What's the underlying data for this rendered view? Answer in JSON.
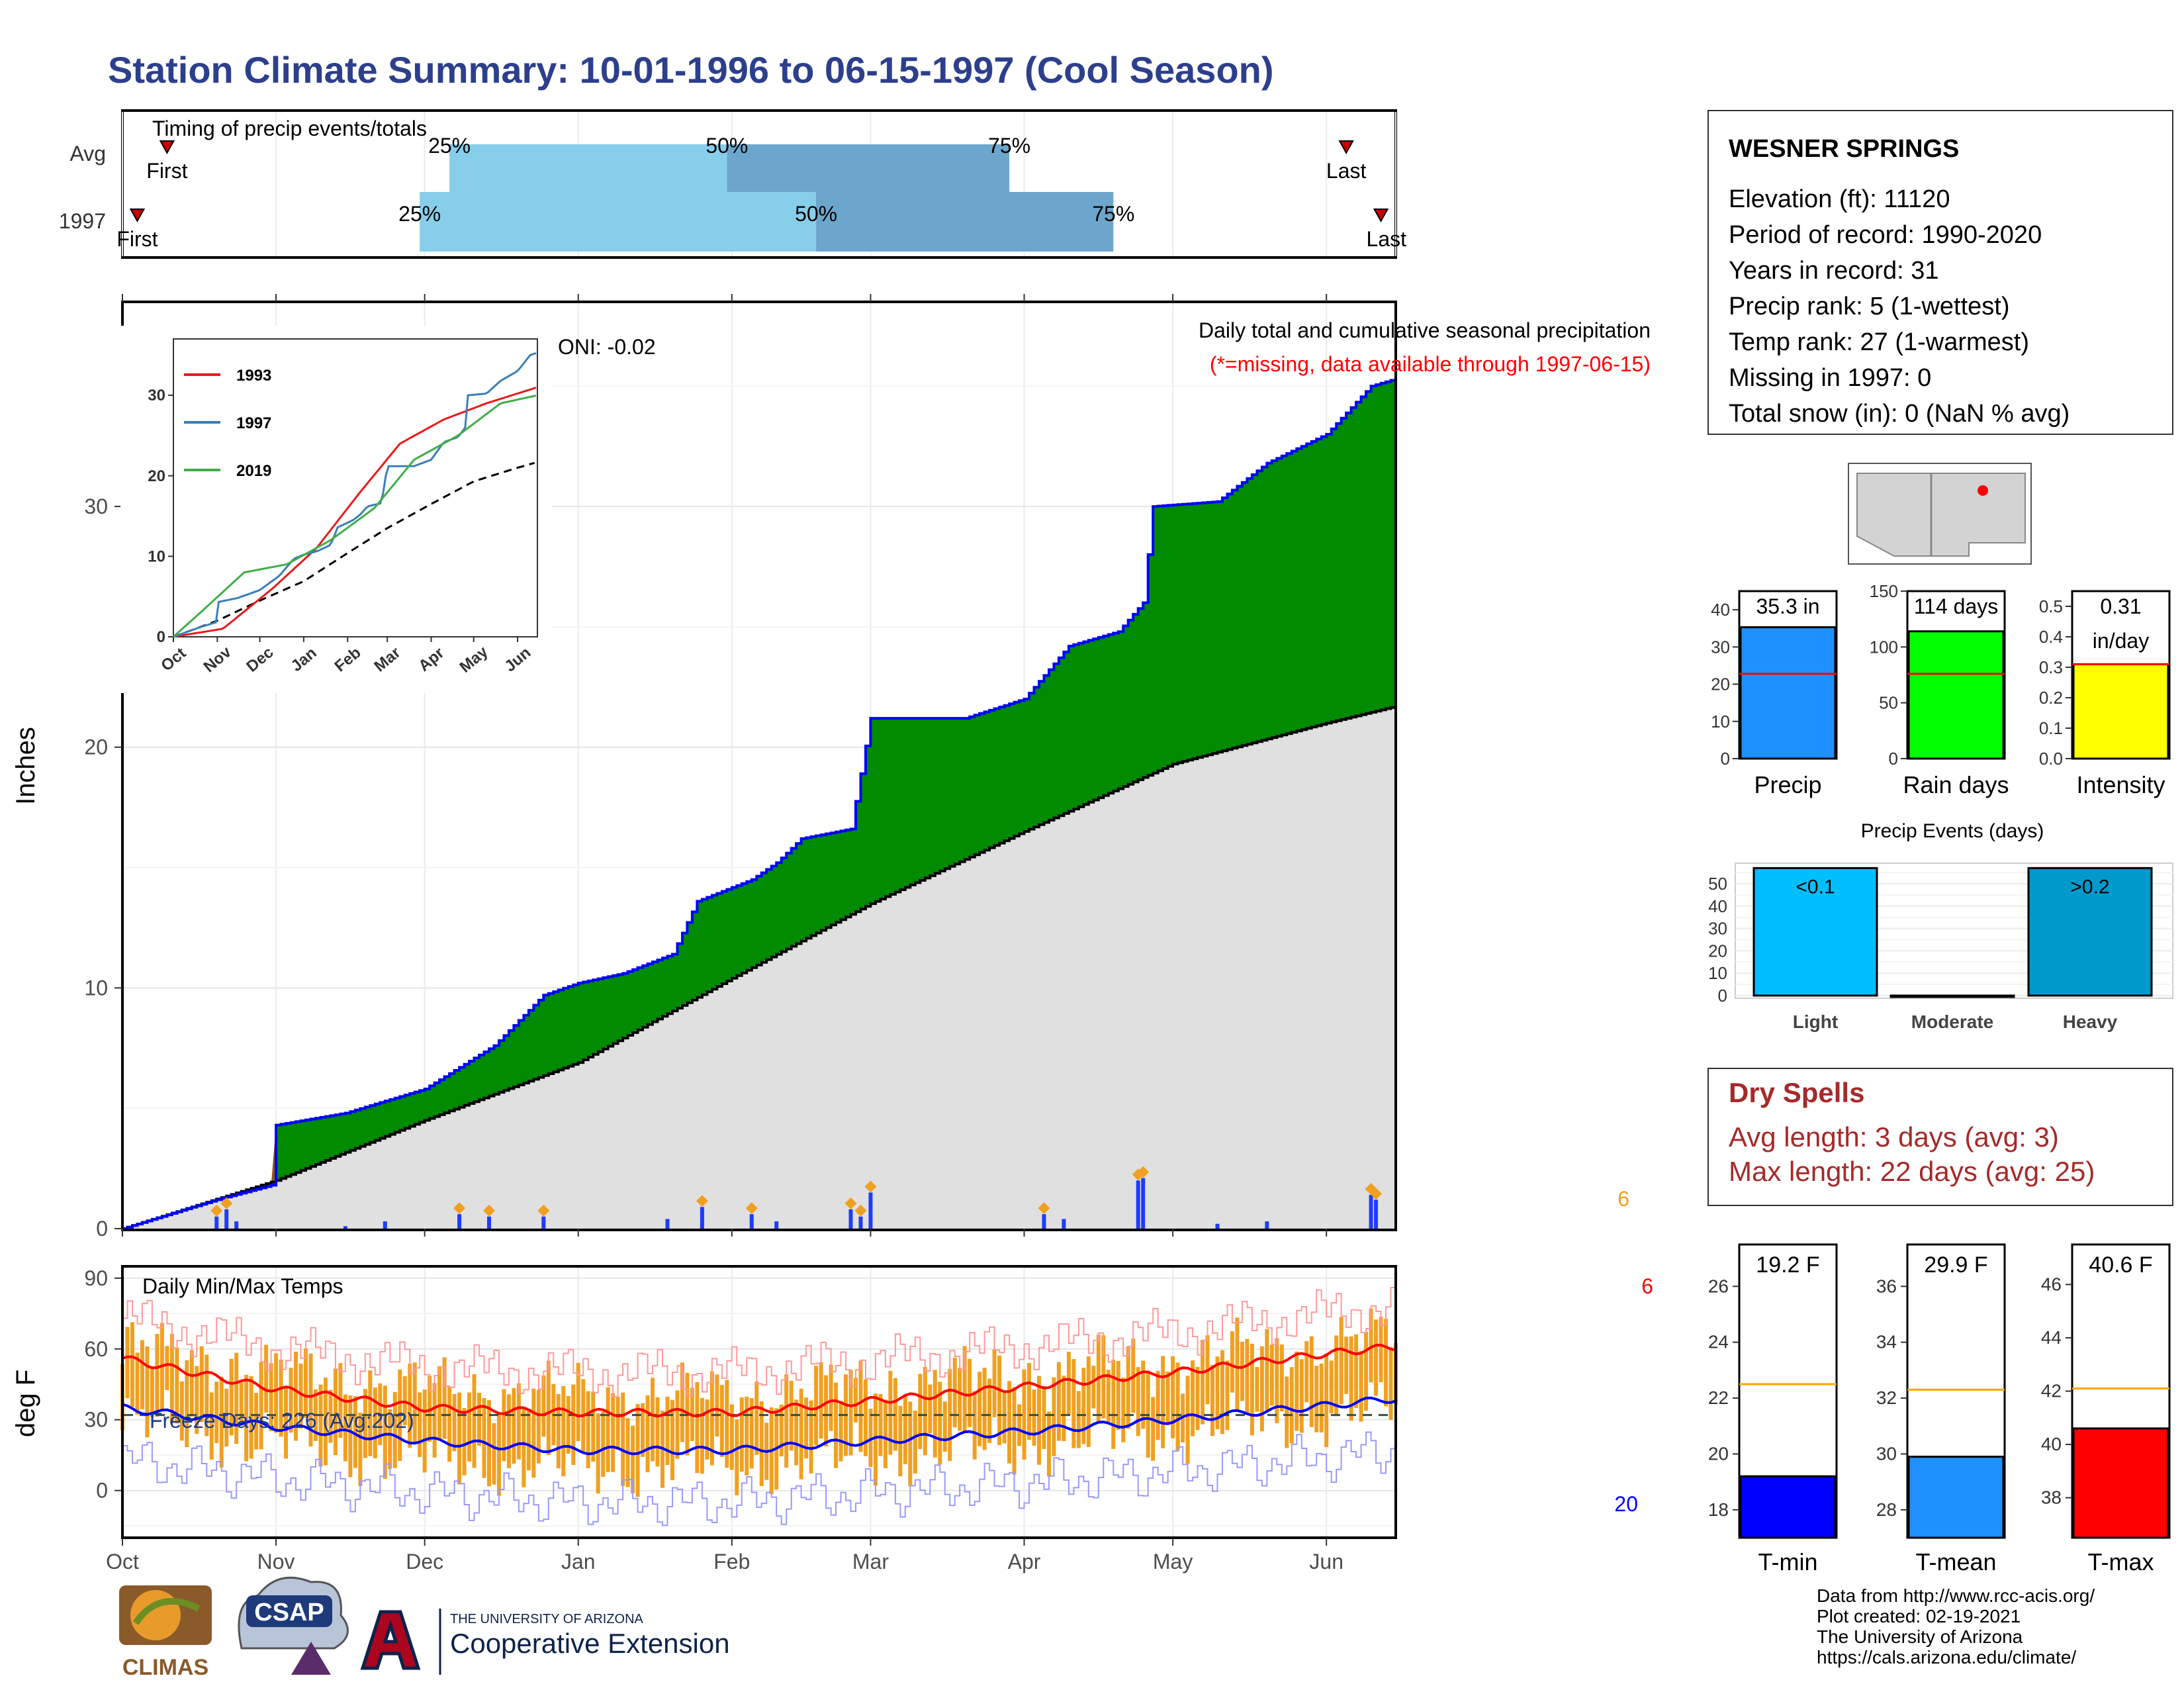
{
  "title": "Station Climate Summary: 10-01-1996 to 06-15-1997 (Cool Season)",
  "colors": {
    "title": "#2d3f8c",
    "q_light": "#87ceeb",
    "q_dark": "#6ca6cd",
    "green": "#008b00",
    "blue_line": "#0000ff",
    "gray_fill": "#e0e0e0",
    "brown": "#8b5a1a",
    "orange": "#f0a020",
    "red": "#ff0000",
    "dark_red": "#a52a2a"
  },
  "timing": {
    "caption": "Timing of precip events/totals",
    "row_labels": [
      "Avg",
      "1997"
    ],
    "first_label": "First",
    "last_label": "Last",
    "p25": "25%",
    "p50": "50%",
    "p75": "75%",
    "avg": {
      "first": "1996-10-10",
      "p25": "1996-12-06",
      "p50": "1997-01-31",
      "p75": "1997-03-29",
      "last": "1997-06-05"
    },
    "y1997": {
      "first": "1996-10-04",
      "p25": "1996-11-30",
      "p50": "1997-02-18",
      "p75": "1997-04-19",
      "last": "1997-06-12"
    }
  },
  "station": {
    "name": "WESNER SPRINGS",
    "lines": [
      "Elevation (ft): 11120",
      "Period of record: 1990-2020",
      "Years in record: 31",
      "Precip rank: 5 (1-wettest)",
      "Temp rank: 27 (1-warmest)",
      "Missing in 1997: 0",
      "Total snow (in): 0 (NaN % avg)"
    ]
  },
  "precip_chart": {
    "ylabel": "Inches",
    "oni": "ONI: -0.02",
    "caption": "Daily total and cumulative seasonal precipitation",
    "missing_note": "(*=missing, data available through 1997-06-15)",
    "corner_label": "6",
    "yticks": [
      0,
      10,
      20,
      30
    ],
    "x_months": [
      "Oct",
      "Nov",
      "Dec",
      "Jan",
      "Feb",
      "Mar",
      "Apr",
      "May",
      "Jun"
    ]
  },
  "inset": {
    "xlabels": [
      "Oct",
      "Nov",
      "Dec",
      "Jan",
      "Feb",
      "Mar",
      "Apr",
      "May",
      "Jun"
    ],
    "yticks": [
      0,
      10,
      20,
      30
    ],
    "legend": [
      {
        "name": "1993",
        "color": "#e8191c"
      },
      {
        "name": "1997",
        "color": "#3a7fb8"
      },
      {
        "name": "2019",
        "color": "#3fae49"
      }
    ]
  },
  "temp_chart": {
    "ylabel": "deg F",
    "caption": "Daily Min/Max Temps",
    "freeze": "Freeze Days: 226 (Avg:202)",
    "corner_top": "6",
    "corner_bottom": "20",
    "yticks": [
      0,
      30,
      60,
      90
    ]
  },
  "mini_bars": [
    {
      "label": "Precip",
      "value_text": "35.3 in",
      "value": 35.3,
      "avg": 22.8,
      "max": 45,
      "ticks": [
        0,
        10,
        20,
        30,
        40
      ],
      "color": "#1e90ff"
    },
    {
      "label": "Rain days",
      "value_text": "114 days",
      "value": 114,
      "avg": 76,
      "max": 150,
      "ticks": [
        0,
        50,
        100,
        150
      ],
      "color": "#00ff00"
    },
    {
      "label": "Intensity",
      "value_text": "0.31\nin/day",
      "value": 0.31,
      "avg": 0.31,
      "max": 0.55,
      "ticks": [
        "0.0",
        "0.1",
        "0.2",
        "0.3",
        "0.4",
        "0.5"
      ],
      "color": "#ffff00"
    }
  ],
  "events": {
    "title": "Precip Events (days)",
    "categories": [
      "Light",
      "Moderate",
      "Heavy"
    ],
    "labels": [
      "<0.1",
      "",
      ">0.2"
    ],
    "values": [
      57,
      0,
      57
    ],
    "ticks": [
      0,
      10,
      20,
      30,
      40,
      50
    ],
    "colors": [
      "#00bfff",
      "#1e90ff",
      "#0099cc"
    ]
  },
  "dry_spells": {
    "title": "Dry Spells",
    "avg": "Avg length: 3 days (avg: 3)",
    "max": "Max length: 22 days (avg: 25)"
  },
  "temp_bars": [
    {
      "label": "T-min",
      "value_text": "19.2 F",
      "value": 19.2,
      "avg": 22.5,
      "min": 17,
      "max": 27.5,
      "ticks": [
        18,
        20,
        22,
        24,
        26
      ],
      "color": "#0000ff"
    },
    {
      "label": "T-mean",
      "value_text": "29.9 F",
      "value": 29.9,
      "avg": 32.3,
      "min": 27,
      "max": 37.5,
      "ticks": [
        28,
        30,
        32,
        34,
        36
      ],
      "color": "#1e90ff"
    },
    {
      "label": "T-max",
      "value_text": "40.6 F",
      "value": 40.6,
      "avg": 42.1,
      "min": 36.5,
      "max": 47.5,
      "ticks": [
        38,
        40,
        42,
        44,
        46
      ],
      "color": "#ff0000"
    }
  ],
  "footer": {
    "lines": [
      "Data from http://www.rcc-acis.org/",
      "Plot created: 02-19-2021",
      "The University of Arizona",
      "https://cals.arizona.edu/climate/"
    ],
    "climas": "CLIMAS",
    "csap": "CSAP",
    "ua_small": "THE UNIVERSITY OF ARIZONA",
    "ua_big": "Cooperative Extension"
  },
  "chart_data": {
    "type": "area",
    "title": "Daily total and cumulative seasonal precipitation",
    "ylabel": "Inches",
    "ylim": [
      0,
      38.5
    ],
    "x_range": [
      "1996-10-01",
      "1997-06-15"
    ],
    "series": [
      {
        "name": "1997 cumulative",
        "points": [
          [
            "1996-10-01",
            0
          ],
          [
            "1996-10-20",
            1.2
          ],
          [
            "1996-10-31",
            1.8
          ],
          [
            "1996-11-01",
            4.3
          ],
          [
            "1996-11-15",
            4.8
          ],
          [
            "1996-12-01",
            5.8
          ],
          [
            "1996-12-15",
            7.6
          ],
          [
            "1996-12-25",
            9.7
          ],
          [
            "1997-01-01",
            10.2
          ],
          [
            "1997-01-10",
            10.6
          ],
          [
            "1997-01-20",
            11.4
          ],
          [
            "1997-01-25",
            13.6
          ],
          [
            "1997-02-05",
            14.5
          ],
          [
            "1997-02-10",
            15.2
          ],
          [
            "1997-02-15",
            16.2
          ],
          [
            "1997-02-25",
            16.6
          ],
          [
            "1997-03-01",
            21.2
          ],
          [
            "1997-03-20",
            21.2
          ],
          [
            "1997-04-01",
            22.0
          ],
          [
            "1997-04-10",
            24.2
          ],
          [
            "1997-04-20",
            24.8
          ],
          [
            "1997-04-25",
            26.0
          ],
          [
            "1997-04-27",
            30.0
          ],
          [
            "1997-05-10",
            30.2
          ],
          [
            "1997-05-20",
            31.8
          ],
          [
            "1997-06-01",
            33.0
          ],
          [
            "1997-06-10",
            35.0
          ],
          [
            "1997-06-15",
            35.3
          ]
        ]
      },
      {
        "name": "average cumulative",
        "points": [
          [
            "1996-10-01",
            0
          ],
          [
            "1996-11-01",
            2.0
          ],
          [
            "1996-12-01",
            4.5
          ],
          [
            "1997-01-01",
            6.9
          ],
          [
            "1997-02-01",
            10.4
          ],
          [
            "1997-03-01",
            13.5
          ],
          [
            "1997-04-01",
            16.5
          ],
          [
            "1997-05-01",
            19.3
          ],
          [
            "1997-06-01",
            21.0
          ],
          [
            "1997-06-15",
            21.7
          ]
        ]
      }
    ],
    "daily_precip": [
      [
        "1996-10-20",
        0.5
      ],
      [
        "1996-10-22",
        0.8
      ],
      [
        "1996-10-24",
        0.3
      ],
      [
        "1996-11-15",
        0.1
      ],
      [
        "1996-11-23",
        0.3
      ],
      [
        "1996-12-08",
        0.6
      ],
      [
        "1996-12-14",
        0.5
      ],
      [
        "1996-12-25",
        0.5
      ],
      [
        "1997-01-19",
        0.4
      ],
      [
        "1997-01-26",
        0.9
      ],
      [
        "1997-02-05",
        0.6
      ],
      [
        "1997-02-10",
        0.3
      ],
      [
        "1997-02-25",
        0.8
      ],
      [
        "1997-02-27",
        0.5
      ],
      [
        "1997-03-01",
        1.5
      ],
      [
        "1997-04-05",
        0.6
      ],
      [
        "1997-04-09",
        0.4
      ],
      [
        "1997-04-24",
        2.0
      ],
      [
        "1997-04-25",
        2.1
      ],
      [
        "1997-05-10",
        0.2
      ],
      [
        "1997-05-20",
        0.3
      ],
      [
        "1997-06-10",
        1.4
      ],
      [
        "1997-06-11",
        1.2
      ]
    ],
    "temperature": {
      "ylabel": "deg F",
      "ylim": [
        -20,
        95
      ],
      "avg_max": [
        [
          "1996-10-01",
          56
        ],
        [
          "1996-11-01",
          43
        ],
        [
          "1996-12-01",
          35
        ],
        [
          "1997-01-01",
          33
        ],
        [
          "1997-02-01",
          33
        ],
        [
          "1997-03-01",
          38
        ],
        [
          "1997-04-01",
          44
        ],
        [
          "1997-05-01",
          50
        ],
        [
          "1997-06-01",
          58
        ],
        [
          "1997-06-15",
          61
        ]
      ],
      "avg_min": [
        [
          "1996-10-01",
          35
        ],
        [
          "1996-11-01",
          27
        ],
        [
          "1996-12-01",
          21
        ],
        [
          "1997-01-01",
          17
        ],
        [
          "1997-02-01",
          17
        ],
        [
          "1997-03-01",
          21
        ],
        [
          "1997-04-01",
          25
        ],
        [
          "1997-05-01",
          30
        ],
        [
          "1997-06-01",
          36
        ],
        [
          "1997-06-15",
          39
        ]
      ],
      "freeze_line": 32
    }
  }
}
